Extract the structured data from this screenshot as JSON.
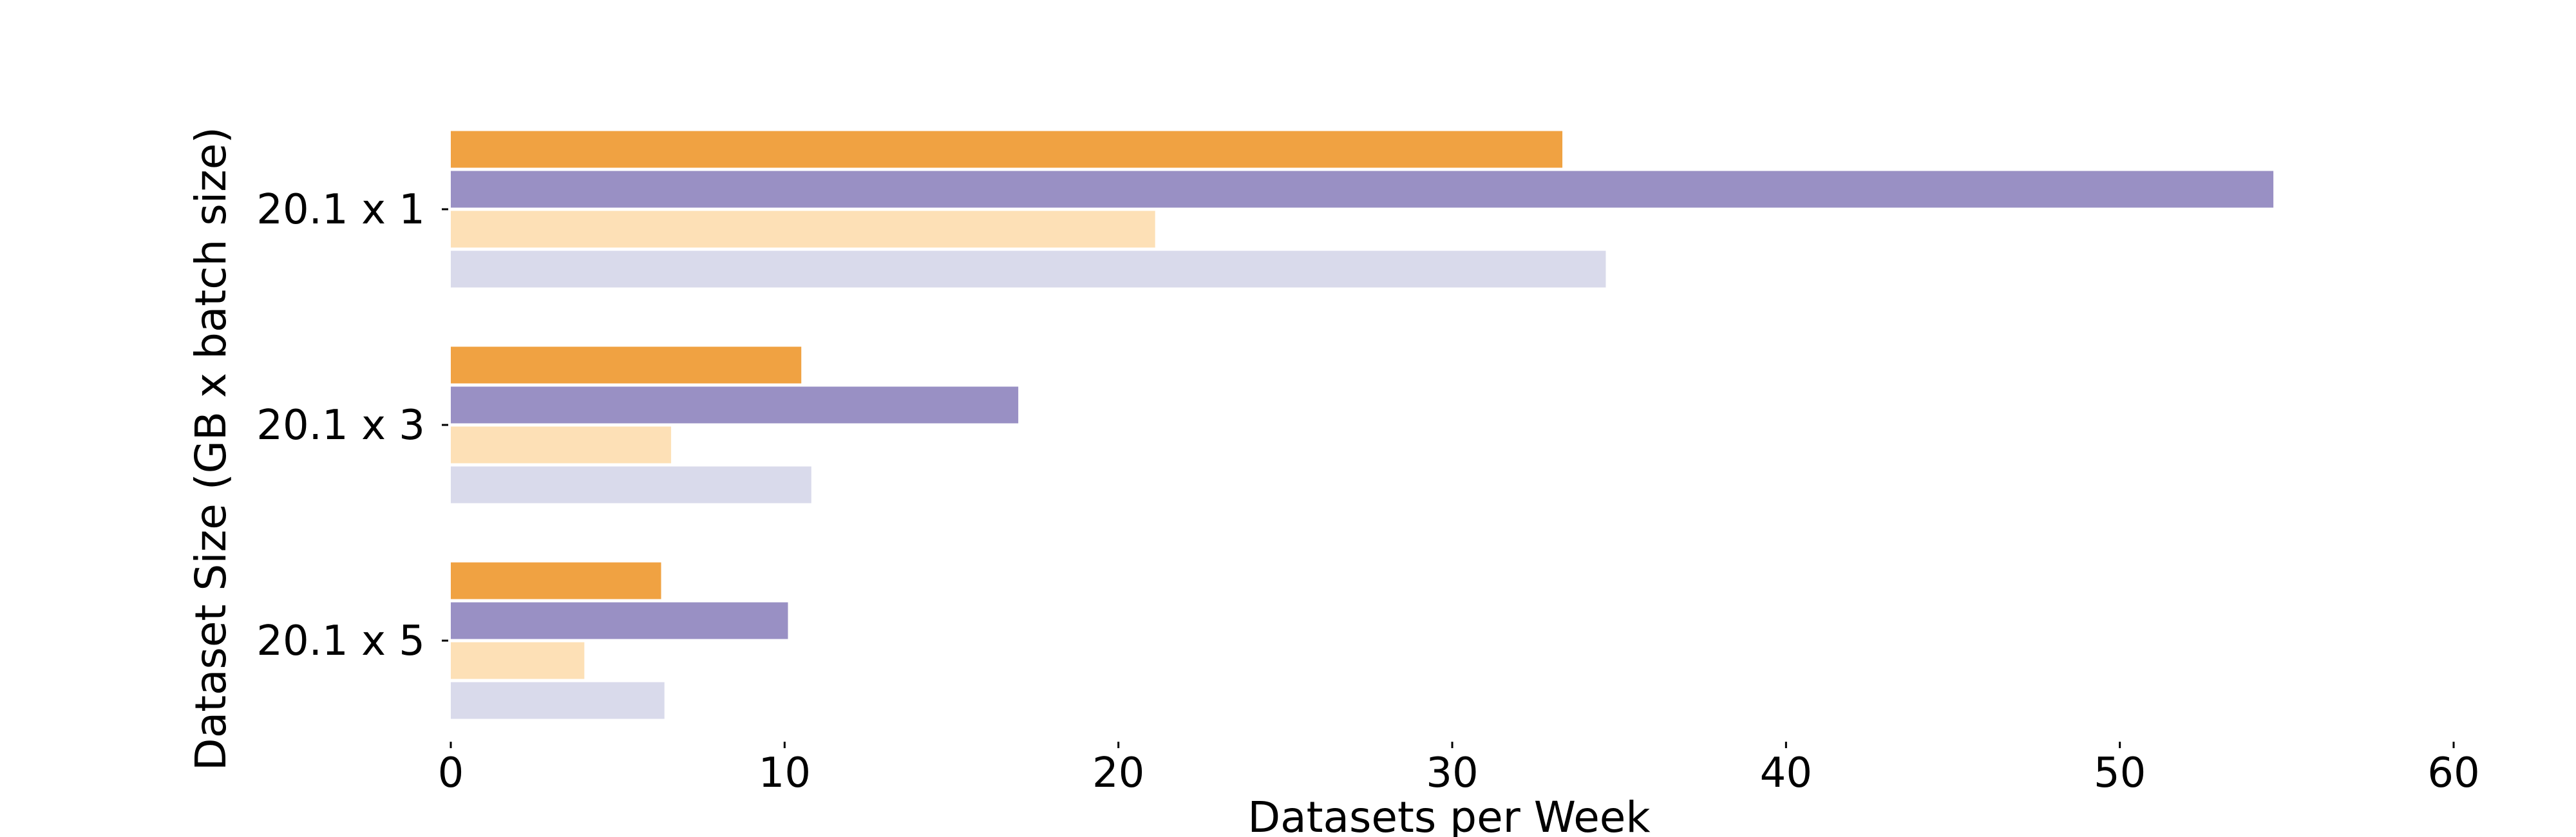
{
  "chart_data": {
    "type": "bar",
    "orientation": "horizontal",
    "title": "",
    "xlabel": "Datasets per Week",
    "ylabel": "Dataset Size (GB x batch size)",
    "categories": [
      "20.1 x 1",
      "20.1 x 3",
      "20.1 x 5"
    ],
    "x_ticks": [
      0,
      10,
      20,
      30,
      40,
      50,
      60
    ],
    "xlim": [
      0,
      60
    ],
    "grid": false,
    "legend": "none",
    "series": [
      {
        "color": "#f0a242",
        "values": [
          33.3,
          10.5,
          6.3
        ]
      },
      {
        "color": "#9990c4",
        "values": [
          54.6,
          17.0,
          10.1
        ]
      },
      {
        "color": "#fde0b6",
        "values": [
          21.1,
          6.6,
          4.0
        ]
      },
      {
        "color": "#d9daeb",
        "values": [
          34.6,
          10.8,
          6.4
        ]
      }
    ]
  }
}
